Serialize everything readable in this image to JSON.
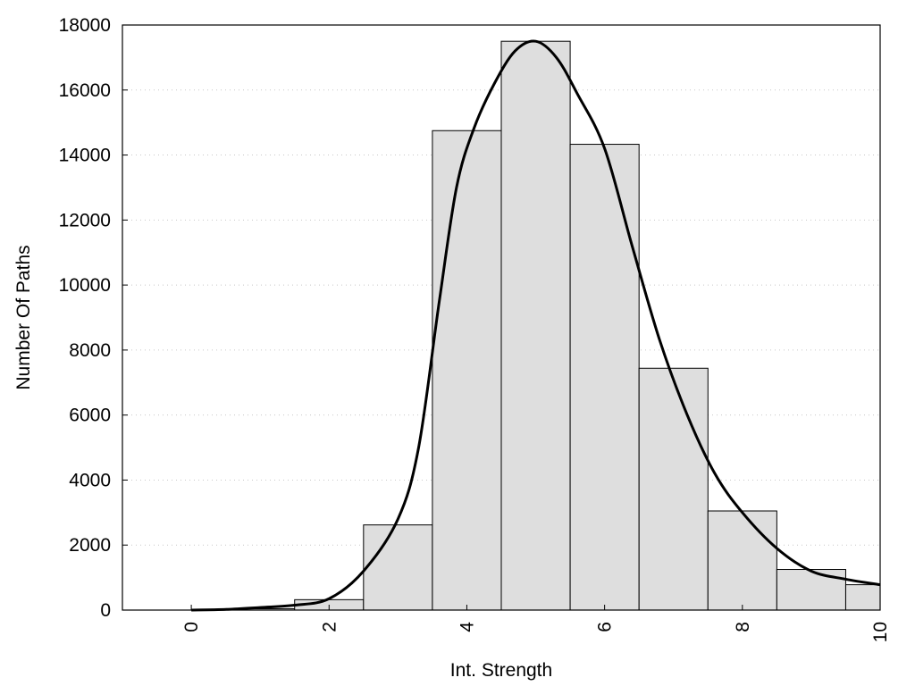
{
  "chart_data": {
    "type": "bar",
    "xlabel": "Int. Strength",
    "ylabel": "Number Of Paths",
    "xlim": [
      -1,
      10
    ],
    "ylim": [
      0,
      18000
    ],
    "x_ticks": [
      0,
      2,
      4,
      6,
      8,
      10
    ],
    "y_ticks": [
      0,
      2000,
      4000,
      6000,
      8000,
      10000,
      12000,
      14000,
      16000,
      18000
    ],
    "grid": "horizontal dotted",
    "bars": [
      {
        "x": 0,
        "value": 0
      },
      {
        "x": 1,
        "value": 40
      },
      {
        "x": 2,
        "value": 320
      },
      {
        "x": 3,
        "value": 2620
      },
      {
        "x": 4,
        "value": 14750
      },
      {
        "x": 5,
        "value": 17500
      },
      {
        "x": 6,
        "value": 14330
      },
      {
        "x": 7,
        "value": 7440
      },
      {
        "x": 8,
        "value": 3050
      },
      {
        "x": 9,
        "value": 1250
      },
      {
        "x": 10,
        "value": 780
      }
    ],
    "curve": {
      "x": [
        0,
        0.5,
        1,
        1.5,
        2,
        2.5,
        3,
        3.3,
        3.6,
        3.85,
        4.1,
        4.4,
        4.7,
        5.0,
        5.3,
        5.6,
        6.0,
        6.4,
        6.8,
        7.2,
        7.6,
        8.0,
        8.5,
        9.0,
        9.5,
        10.0
      ],
      "y": [
        0,
        20,
        80,
        150,
        350,
        1200,
        2800,
        5000,
        9500,
        13000,
        14800,
        16200,
        17200,
        17500,
        17000,
        15900,
        14200,
        11200,
        8300,
        6000,
        4200,
        3000,
        1900,
        1200,
        950,
        780
      ]
    }
  }
}
